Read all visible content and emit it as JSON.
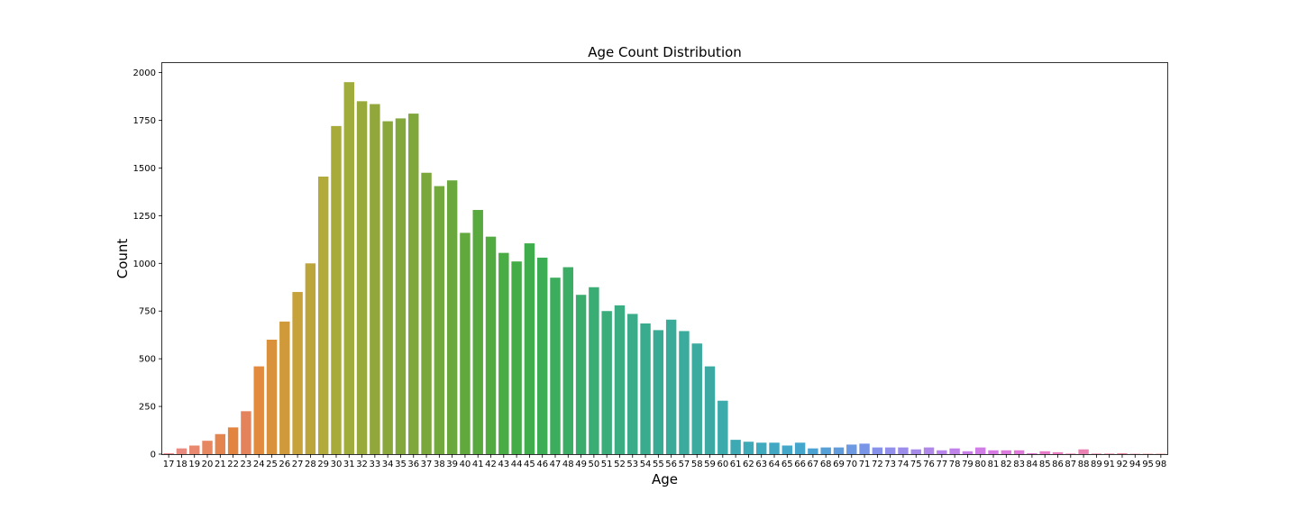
{
  "chart_data": {
    "type": "bar",
    "title": "Age Count Distribution",
    "xlabel": "Age",
    "ylabel": "Count",
    "ylim": [
      0,
      2050
    ],
    "yticks": [
      0,
      250,
      500,
      750,
      1000,
      1250,
      1500,
      1750,
      2000
    ],
    "grid": false,
    "categories": [
      "17",
      "18",
      "19",
      "20",
      "21",
      "22",
      "23",
      "24",
      "25",
      "26",
      "27",
      "28",
      "29",
      "30",
      "31",
      "32",
      "33",
      "34",
      "35",
      "36",
      "37",
      "38",
      "39",
      "40",
      "41",
      "42",
      "43",
      "44",
      "45",
      "46",
      "47",
      "48",
      "49",
      "50",
      "51",
      "52",
      "53",
      "54",
      "55",
      "56",
      "57",
      "58",
      "59",
      "60",
      "61",
      "62",
      "63",
      "64",
      "65",
      "66",
      "67",
      "68",
      "69",
      "70",
      "71",
      "72",
      "73",
      "74",
      "75",
      "76",
      "77",
      "78",
      "79",
      "80",
      "81",
      "82",
      "83",
      "84",
      "85",
      "86",
      "87",
      "88",
      "89",
      "91",
      "92",
      "94",
      "95",
      "98"
    ],
    "values": [
      5,
      30,
      45,
      70,
      105,
      140,
      225,
      460,
      600,
      695,
      850,
      1000,
      1455,
      1720,
      1950,
      1850,
      1835,
      1745,
      1760,
      1785,
      1475,
      1405,
      1435,
      1160,
      1280,
      1140,
      1055,
      1010,
      1105,
      1030,
      925,
      980,
      835,
      875,
      750,
      780,
      735,
      685,
      650,
      705,
      645,
      580,
      460,
      280,
      75,
      65,
      60,
      60,
      45,
      60,
      30,
      35,
      35,
      50,
      55,
      35,
      35,
      35,
      25,
      35,
      20,
      30,
      15,
      35,
      20,
      20,
      20,
      5,
      15,
      10,
      3,
      25,
      3,
      3,
      5,
      2,
      2,
      2
    ],
    "colors": [
      "#ea8b8f",
      "#e98a7f",
      "#e8896f",
      "#e6875f",
      "#e4854f",
      "#e2833f",
      "#e4835b",
      "#e28a3e",
      "#da913c",
      "#d09a3b",
      "#c7a13a",
      "#bca53a",
      "#b2aa3a",
      "#a8ab3a",
      "#a0ac3b",
      "#99a93b",
      "#91a73b",
      "#8aa73b",
      "#83a73b",
      "#7fa73c",
      "#79a73c",
      "#73a83c",
      "#6aa83d",
      "#62a93d",
      "#59aa3e",
      "#51ab41",
      "#4aac44",
      "#44ac47",
      "#40ad4c",
      "#3dad55",
      "#3cad5d",
      "#3bad64",
      "#3aad6c",
      "#3aad74",
      "#3aad7b",
      "#3aad82",
      "#3aac89",
      "#3aac8e",
      "#3aab93",
      "#3aab98",
      "#3aab9d",
      "#3bab9f",
      "#3caaa2",
      "#3cabac",
      "#3daab3",
      "#3eaab8",
      "#3fa9bd",
      "#40a8c3",
      "#42a7c8",
      "#44a5cd",
      "#4aa3d2",
      "#55a0d7",
      "#609cdc",
      "#6c99e1",
      "#7995e7",
      "#8692e9",
      "#9290ea",
      "#9c8dea",
      "#a68aea",
      "#af88ea",
      "#b886ea",
      "#c083e9",
      "#c880e8",
      "#d07de6",
      "#d87ae3",
      "#dc7ae0",
      "#e07ada",
      "#e47ad3",
      "#e87ccb",
      "#ea7ec3",
      "#eb80bc",
      "#eb82b4",
      "#eb84ad",
      "#ea86a6",
      "#e9879f",
      "#e98898",
      "#e98a92",
      "#e98a8d"
    ]
  }
}
